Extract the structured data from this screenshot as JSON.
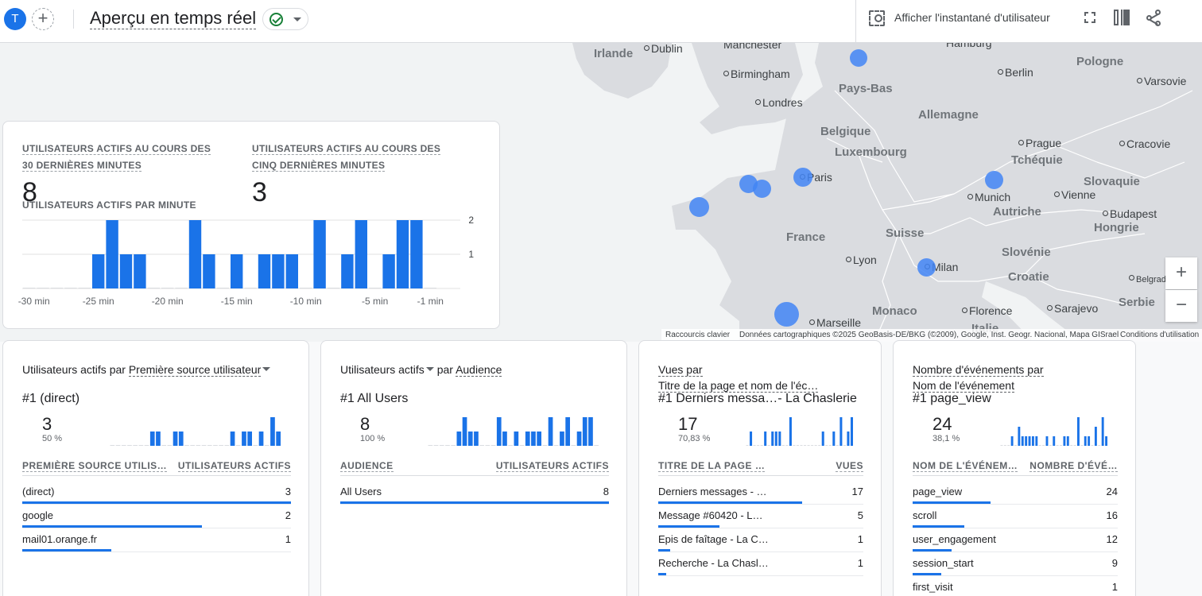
{
  "header": {
    "avatar_letter": "T",
    "add_label": "+",
    "title": "Aperçu en temps réel",
    "snapshot_label": "Afficher l'instantané d'utilisateur",
    "icons": [
      "snapshot-icon",
      "fullscreen-icon",
      "compare-icon",
      "share-icon"
    ],
    "accent_color": "#1a73e8",
    "status_color": "#188038"
  },
  "map": {
    "labels": [
      {
        "text": "Irlande",
        "kind": "country"
      },
      {
        "text": "Dublin",
        "kind": "city"
      },
      {
        "text": "Manchester",
        "kind": "plain"
      },
      {
        "text": "Hamburg",
        "kind": "plain"
      },
      {
        "text": "Pologne",
        "kind": "country"
      },
      {
        "text": "Birmingham",
        "kind": "city"
      },
      {
        "text": "Berlin",
        "kind": "city"
      },
      {
        "text": "Varsovie",
        "kind": "city"
      },
      {
        "text": "Pays-Bas",
        "kind": "country"
      },
      {
        "text": "Londres",
        "kind": "city"
      },
      {
        "text": "Allemagne",
        "kind": "country"
      },
      {
        "text": "Belgique",
        "kind": "country"
      },
      {
        "text": "Prague",
        "kind": "city"
      },
      {
        "text": "Cracovie",
        "kind": "city"
      },
      {
        "text": "Luxembourg",
        "kind": "country"
      },
      {
        "text": "Tchéquie",
        "kind": "country"
      },
      {
        "text": "Paris",
        "kind": "city"
      },
      {
        "text": "Slovaquie",
        "kind": "country"
      },
      {
        "text": "Munich",
        "kind": "city"
      },
      {
        "text": "Vienne",
        "kind": "city"
      },
      {
        "text": "Autriche",
        "kind": "country"
      },
      {
        "text": "Budapest",
        "kind": "city"
      },
      {
        "text": "Suisse",
        "kind": "country"
      },
      {
        "text": "Hongrie",
        "kind": "country"
      },
      {
        "text": "France",
        "kind": "country"
      },
      {
        "text": "Slovénie",
        "kind": "country"
      },
      {
        "text": "Lyon",
        "kind": "city"
      },
      {
        "text": "Milan",
        "kind": "city"
      },
      {
        "text": "Croatie",
        "kind": "country"
      },
      {
        "text": "Belgrade",
        "kind": "city"
      },
      {
        "text": "Monaco",
        "kind": "country"
      },
      {
        "text": "Florence",
        "kind": "city"
      },
      {
        "text": "Sarajevo",
        "kind": "city"
      },
      {
        "text": "Serbie",
        "kind": "country"
      },
      {
        "text": "Marseille",
        "kind": "city"
      },
      {
        "text": "Italie",
        "kind": "country"
      }
    ],
    "zoom_in": "+",
    "zoom_out": "−",
    "footer": {
      "shortcuts": "Raccourcis clavier",
      "attribution": "Données cartographiques ©2025 GeoBasis-DE/BKG (©2009), Google, Inst. Geogr. Nacional, Mapa GISrael",
      "terms": "Conditions d'utilisation"
    }
  },
  "realtime": {
    "metric_30_label": "UTILISATEURS ACTIFS AU COURS DES 30 DERNIÈRES MINUTES",
    "metric_30_value": "8",
    "metric_5_label": "UTILISATEURS ACTIFS AU COURS DES CINQ DERNIÈRES MINUTES",
    "metric_5_value": "3",
    "per_minute_label": "UTILISATEURS ACTIFS PAR MINUTE",
    "chart_data": {
      "type": "bar",
      "categories": [
        "-30 min",
        "-29",
        "-28",
        "-27",
        "-26",
        "-25 min",
        "-24",
        "-23",
        "-22",
        "-21",
        "-20 min",
        "-19",
        "-18",
        "-17",
        "-16",
        "-15 min",
        "-14",
        "-13",
        "-12",
        "-11",
        "-10 min",
        "-9",
        "-8",
        "-7",
        "-6",
        "-5 min",
        "-4",
        "-3",
        "-2",
        "-1 min"
      ],
      "values": [
        0,
        0,
        0,
        0,
        0,
        1,
        2,
        1,
        1,
        0,
        0,
        0,
        2,
        1,
        0,
        1,
        0,
        1,
        1,
        1,
        0,
        2,
        0,
        1,
        2,
        0,
        1,
        2,
        2,
        0
      ],
      "x_tick_labels": [
        "-30 min",
        "-25 min",
        "-20 min",
        "-15 min",
        "-10 min",
        "-5 min",
        "-1 min"
      ],
      "y_tick_labels": [
        "1",
        "2"
      ],
      "ylim": [
        0,
        2
      ],
      "color": "#1a73e8"
    }
  },
  "cards": [
    {
      "title_prefix": "Utilisateurs actifs par ",
      "title_dim": "Première source utilisateur",
      "title_suffix": "",
      "rank": "#1  (direct)",
      "value": "3",
      "pct": "50 %",
      "spark": [
        0,
        0,
        0,
        0,
        0,
        0,
        0,
        1,
        1,
        0,
        0,
        1,
        1,
        0,
        0,
        0,
        0,
        0,
        0,
        0,
        0,
        1,
        0,
        1,
        1,
        0,
        1,
        0,
        2,
        1
      ],
      "col1": "PREMIÈRE SOURCE UTILIS…",
      "col2": "UTILISATEURS ACTIFS",
      "rows": [
        {
          "name": "(direct)",
          "value": "3",
          "share": 1.0
        },
        {
          "name": "google",
          "value": "2",
          "share": 0.67
        },
        {
          "name": "mail01.orange.fr",
          "value": "1",
          "share": 0.33
        }
      ]
    },
    {
      "title_prefix": "Utilisateurs actifs",
      "title_dim": "Audience",
      "title_suffix": "",
      "rank": "#1  All Users",
      "value": "8",
      "pct": "100 %",
      "spark": [
        0,
        0,
        0,
        0,
        0,
        1,
        2,
        1,
        1,
        0,
        0,
        0,
        2,
        1,
        0,
        1,
        0,
        1,
        1,
        1,
        0,
        2,
        0,
        1,
        2,
        0,
        1,
        2,
        2,
        0
      ],
      "col1": "AUDIENCE",
      "col2": "UTILISATEURS ACTIFS",
      "rows": [
        {
          "name": "All Users",
          "value": "8",
          "share": 1.0
        }
      ]
    },
    {
      "title_prefix": "Vues par",
      "title_dim": "Titre de la page et nom de l'éc…",
      "title_suffix": "",
      "rank": "#1  Derniers messa…- La Chaslerie",
      "value": "17",
      "pct": "70,83 %",
      "spark": [
        0,
        1,
        0,
        0,
        0,
        1,
        0,
        1,
        1,
        1,
        0,
        0,
        2,
        0,
        0,
        0,
        0,
        0,
        0,
        0,
        0,
        1,
        0,
        0,
        1,
        0,
        2,
        0,
        1,
        2
      ],
      "col1": "TITRE DE LA PAGE …",
      "col2": "VUES",
      "rows": [
        {
          "name": "Derniers messages - …",
          "value": "17",
          "share": 0.7
        },
        {
          "name": "Message #60420 - L…",
          "value": "5",
          "share": 0.3
        },
        {
          "name": "Epis de faîtage - La C…",
          "value": "1",
          "share": 0.06
        },
        {
          "name": "Recherche - La Chasl…",
          "value": "1",
          "share": 0.04
        }
      ]
    },
    {
      "title_prefix": "Nombre d'événements par",
      "title_dim": "Nom de l'événement",
      "title_suffix": "",
      "rank": "#1  page_view",
      "value": "24",
      "pct": "38,1 %",
      "spark": [
        0,
        0,
        0,
        1,
        0,
        2,
        1,
        1,
        1,
        1,
        1,
        0,
        0,
        1,
        0,
        1,
        0,
        0,
        1,
        1,
        0,
        0,
        3,
        0,
        1,
        1,
        0,
        2,
        0,
        3,
        1
      ],
      "col1": "NOM DE L'ÉVÉNEM…",
      "col2": "NOMBRE D'ÉVÉ…",
      "rows": [
        {
          "name": "page_view",
          "value": "24",
          "share": 0.38
        },
        {
          "name": "scroll",
          "value": "16",
          "share": 0.25
        },
        {
          "name": "user_engagement",
          "value": "12",
          "share": 0.19
        },
        {
          "name": "session_start",
          "value": "9",
          "share": 0.14
        },
        {
          "name": "first_visit",
          "value": "1",
          "share": 0.02
        }
      ]
    }
  ]
}
